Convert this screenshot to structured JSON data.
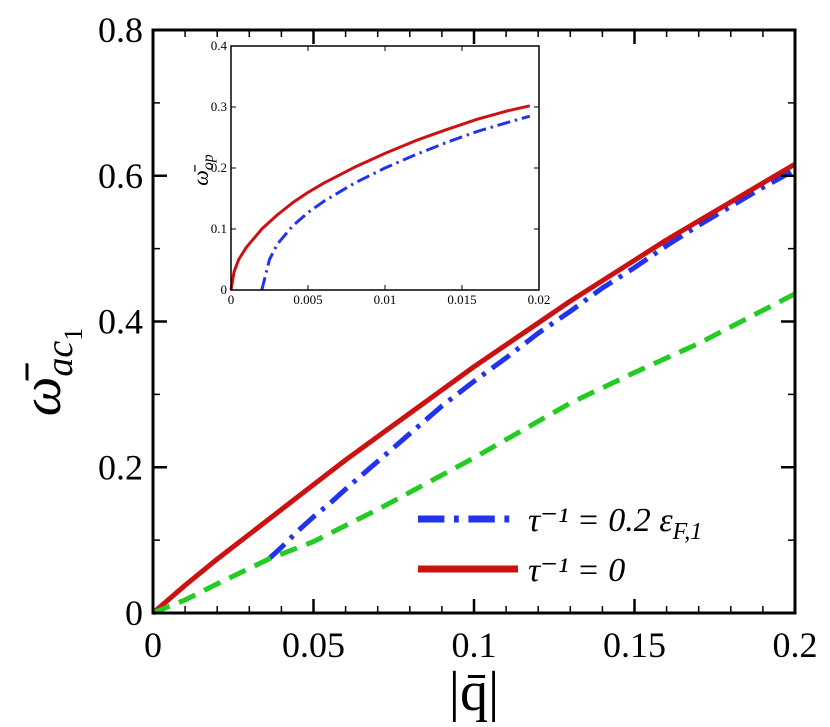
{
  "chart_data": [
    {
      "type": "line",
      "xlabel": "|q̄|",
      "ylabel": "ω̄",
      "ylabel_sub": "ac",
      "ylabel_sub2": "1",
      "xlim": [
        0,
        0.2
      ],
      "ylim": [
        0,
        0.8
      ],
      "xticks": [
        "0",
        "0.05",
        "0.1",
        "0.15",
        "0.2"
      ],
      "yticks": [
        "0",
        "0.2",
        "0.4",
        "0.6",
        "0.8"
      ],
      "grid": false,
      "legend_position": "bottom-right",
      "series": [
        {
          "name": "τ⁻¹ = 0.2 ε",
          "name_sub": "F,1",
          "color": "#2233ee",
          "dash": "dashdot",
          "x": [
            0.036,
            0.04,
            0.045,
            0.05,
            0.055,
            0.06,
            0.07,
            0.08,
            0.09,
            0.1,
            0.11,
            0.12,
            0.13,
            0.14,
            0.15,
            0.16,
            0.17,
            0.18,
            0.19,
            0.2
          ],
          "y": [
            0.074,
            0.09,
            0.112,
            0.132,
            0.15,
            0.17,
            0.208,
            0.246,
            0.284,
            0.318,
            0.35,
            0.384,
            0.414,
            0.446,
            0.474,
            0.504,
            0.532,
            0.558,
            0.584,
            0.608
          ]
        },
        {
          "name": "τ⁻¹ = 0",
          "color": "#cc1111",
          "dash": "solid",
          "x": [
            0.0,
            0.01,
            0.02,
            0.03,
            0.04,
            0.05,
            0.06,
            0.07,
            0.08,
            0.09,
            0.1,
            0.11,
            0.12,
            0.13,
            0.14,
            0.15,
            0.16,
            0.17,
            0.18,
            0.19,
            0.2
          ],
          "y": [
            0.0,
            0.038,
            0.074,
            0.108,
            0.142,
            0.176,
            0.21,
            0.242,
            0.274,
            0.306,
            0.338,
            0.368,
            0.398,
            0.428,
            0.456,
            0.484,
            0.512,
            0.538,
            0.564,
            0.59,
            0.616
          ]
        },
        {
          "color": "#22cc22",
          "dash": "dashed",
          "x": [
            0.0,
            0.01,
            0.02,
            0.036,
            0.05,
            0.07,
            0.1,
            0.13,
            0.15,
            0.17,
            0.2
          ],
          "y": [
            0.0,
            0.018,
            0.04,
            0.074,
            0.098,
            0.142,
            0.213,
            0.288,
            0.33,
            0.37,
            0.438
          ]
        }
      ]
    },
    {
      "type": "line",
      "ylabel": "ω̄",
      "ylabel_sub": "op",
      "xlim": [
        0,
        0.02
      ],
      "ylim": [
        0,
        0.4
      ],
      "xticks": [
        "0",
        "0.005",
        "0.01",
        "0.015",
        "0.02"
      ],
      "yticks": [
        "0",
        "0.1",
        "0.2",
        "0.3",
        "0.4"
      ],
      "grid": false,
      "series": [
        {
          "color": "#cc1111",
          "dash": "solid",
          "x": [
            0.0,
            0.0002,
            0.0005,
            0.001,
            0.002,
            0.003,
            0.004,
            0.005,
            0.006,
            0.008,
            0.01,
            0.012,
            0.014,
            0.016,
            0.018,
            0.0194
          ],
          "y": [
            0.0,
            0.03,
            0.05,
            0.07,
            0.1,
            0.123,
            0.143,
            0.16,
            0.175,
            0.201,
            0.224,
            0.245,
            0.263,
            0.28,
            0.294,
            0.302
          ]
        },
        {
          "color": "#2233ee",
          "dash": "dashdot",
          "x": [
            0.002,
            0.0025,
            0.003,
            0.004,
            0.005,
            0.006,
            0.008,
            0.01,
            0.012,
            0.014,
            0.016,
            0.018,
            0.0194
          ],
          "y": [
            0.0,
            0.05,
            0.075,
            0.105,
            0.127,
            0.145,
            0.175,
            0.2,
            0.222,
            0.242,
            0.26,
            0.275,
            0.285
          ]
        }
      ]
    }
  ]
}
